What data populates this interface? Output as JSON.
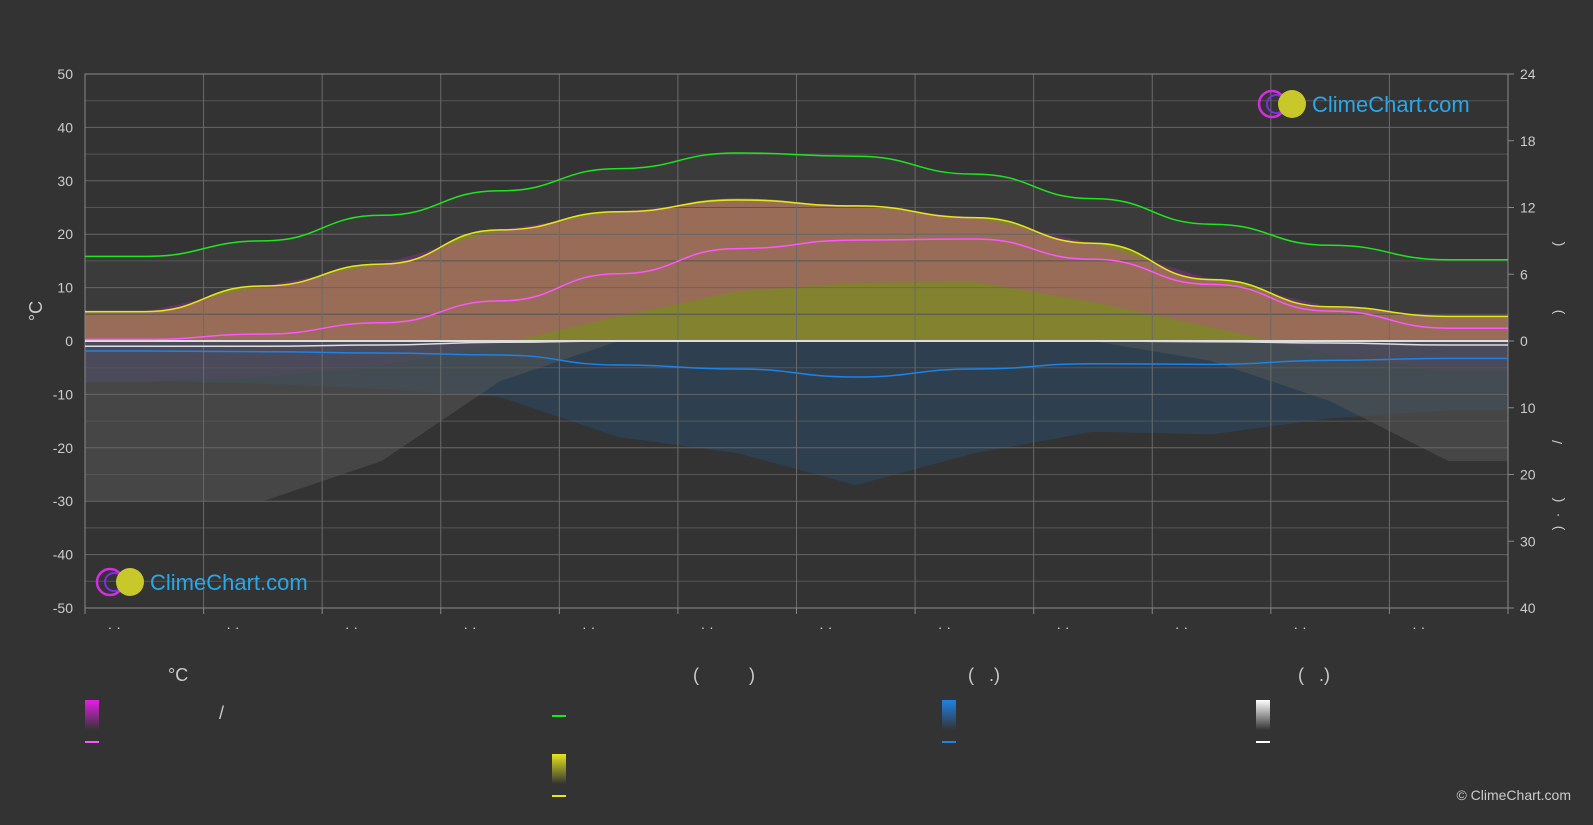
{
  "chart_data": {
    "type": "area",
    "left_axis": {
      "label": "°C",
      "ticks": [
        50,
        40,
        30,
        20,
        10,
        0,
        -10,
        -20,
        -30,
        -40,
        -50
      ],
      "range": [
        -50,
        50
      ]
    },
    "right_axis_top": {
      "label_parts": [
        "(",
        ")"
      ],
      "ticks": [
        24,
        18,
        12,
        6,
        0
      ],
      "range": [
        0,
        24
      ]
    },
    "right_axis_bottom": {
      "label_parts": [
        "/",
        "(",
        "·",
        ")"
      ],
      "ticks": [
        0,
        10,
        20,
        30,
        40
      ],
      "range": [
        0,
        40
      ]
    },
    "month_labels": [
      "· ·",
      "· ·",
      "· ·",
      "· ·",
      "· ·",
      "· ·",
      "· ·",
      "· ·",
      "· ·",
      "· ·",
      "· ·",
      "· ·"
    ],
    "monthly": {
      "daylight_hours": [
        7.6,
        9.0,
        11.3,
        13.5,
        15.5,
        16.9,
        16.6,
        15.0,
        12.8,
        10.5,
        8.6,
        7.3
      ],
      "sunshine_hours": [
        2.7,
        5.0,
        6.9,
        10.0,
        11.6,
        12.8,
        12.2,
        11.1,
        8.8,
        5.6,
        3.0,
        2.2
      ],
      "max_temp": [
        5.5,
        10.3,
        14.4,
        20.8,
        24.2,
        26.4,
        25.3,
        23.1,
        18.3,
        11.5,
        6.4,
        4.6
      ],
      "mean_temp": [
        0.3,
        1.3,
        3.4,
        7.5,
        12.6,
        17.3,
        18.9,
        19.1,
        15.3,
        10.6,
        5.6,
        2.4
      ],
      "precipitation_mm": [
        1.5,
        1.6,
        1.8,
        2.1,
        3.6,
        4.2,
        5.4,
        4.2,
        3.4,
        3.5,
        2.9,
        2.6
      ],
      "snow_mm": [
        0.8,
        0.8,
        0.6,
        0.2,
        0.0,
        0.0,
        0.0,
        0.0,
        0.0,
        0.1,
        0.3,
        0.6
      ]
    },
    "grid": true
  },
  "legend": {
    "groups": [
      {
        "title": "°C",
        "items": [
          {
            "kind": "bar",
            "color": "#e61ee6",
            "label": "/"
          },
          {
            "kind": "line",
            "color": "#ff55ff",
            "label": ""
          }
        ]
      },
      {
        "title": "(          )",
        "items": [
          {
            "kind": "line",
            "color": "#1ee61e",
            "label": ""
          },
          {
            "kind": "bar",
            "color": "#e6e61e",
            "label": ""
          },
          {
            "kind": "line",
            "color": "#e6e61e",
            "label": ""
          }
        ]
      },
      {
        "title": "(   .)",
        "items": [
          {
            "kind": "bar",
            "color": "#1e82e6",
            "label": ""
          },
          {
            "kind": "line",
            "color": "#1e82e6",
            "label": ""
          }
        ]
      },
      {
        "title": "(   .)",
        "items": [
          {
            "kind": "bar",
            "color": "#ffffff",
            "label": ""
          },
          {
            "kind": "line",
            "color": "#ffffff",
            "label": ""
          }
        ]
      }
    ]
  },
  "logo_text": "ClimeChart.com",
  "copyright": "© ClimeChart.com",
  "colors": {
    "background": "#333333",
    "grid": "#666666",
    "daylight": "#1ee61e",
    "sunshine": "#e6e61e",
    "max_temp_line": "#e6e61e",
    "mean_temp_line": "#ff55ff",
    "temp_band": "#e61ee6",
    "rain": "#1e82e6",
    "snow": "#ffffff",
    "logo": "#2aa7e8"
  }
}
